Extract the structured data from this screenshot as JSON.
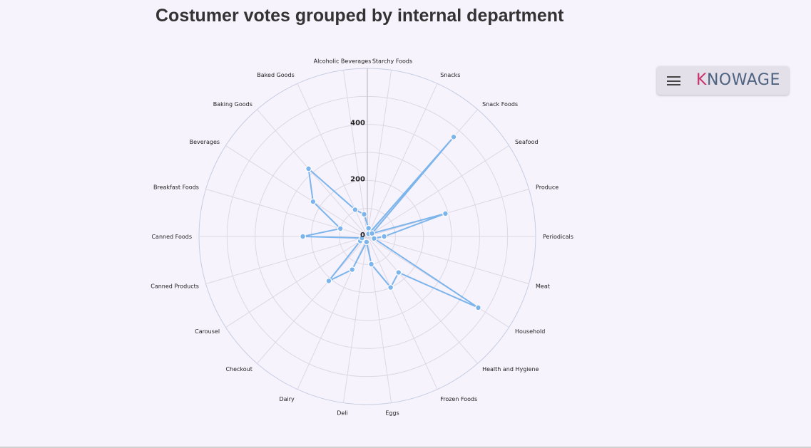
{
  "chart_data": {
    "type": "radar",
    "title": "Costumer votes grouped by internal department",
    "categories": [
      "Starchy Foods",
      "Snacks",
      "Snack Foods",
      "Seafood",
      "Produce",
      "Periodicals",
      "Meat",
      "Household",
      "Health and Hygiene",
      "Frozen Foods",
      "Eggs",
      "Deli",
      "Dairy",
      "Checkout",
      "Carousel",
      "Canned Products",
      "Canned Foods",
      "Breakfast Foods",
      "Beverages",
      "Baking Goods",
      "Baked Goods",
      "Alcoholic Beverages"
    ],
    "values": [
      30,
      10,
      470,
      20,
      290,
      60,
      25,
      470,
      170,
      200,
      100,
      20,
      130,
      210,
      30,
      20,
      230,
      100,
      230,
      320,
      105,
      80
    ],
    "yticks": [
      "0",
      "200",
      "400"
    ],
    "ylim": [
      0,
      600
    ],
    "grid": true,
    "series_color": "#7cb5ec"
  },
  "menu": {
    "brand_k": "K",
    "brand_rest": "NOWAGE",
    "icon": "hamburger-menu-icon"
  }
}
